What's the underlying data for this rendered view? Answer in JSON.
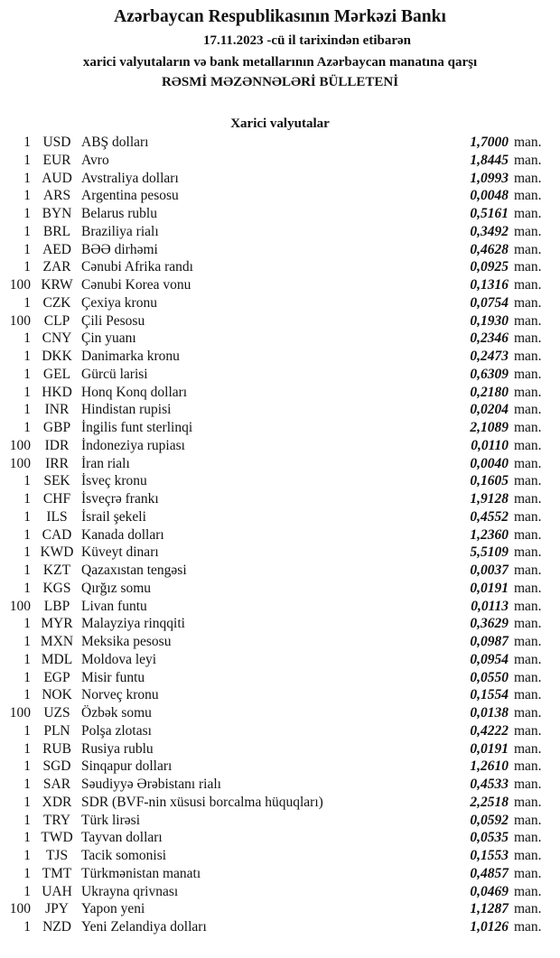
{
  "header": {
    "title": "Azərbaycan Respublikasının Mərkəzi Bankı",
    "date_line": "17.11.2023 -cü il tarixindən etibarən",
    "subtitle": "xarici valyutaların və bank metallarının Azərbaycan manatına qarşı",
    "bulletin": "RƏSMİ MƏZƏNNƏLƏRİ BÜLLETENİ"
  },
  "section_title": "Xarici valyutalar",
  "unit": "man.",
  "rates": [
    {
      "nominal": "1",
      "code": "USD",
      "name": "ABŞ dolları",
      "rate": "1,7000"
    },
    {
      "nominal": "1",
      "code": "EUR",
      "name": "Avro",
      "rate": "1,8445"
    },
    {
      "nominal": "1",
      "code": "AUD",
      "name": "Avstraliya dolları",
      "rate": "1,0993"
    },
    {
      "nominal": "1",
      "code": "ARS",
      "name": "Argentina pesosu",
      "rate": "0,0048"
    },
    {
      "nominal": "1",
      "code": "BYN",
      "name": "Belarus rublu",
      "rate": "0,5161"
    },
    {
      "nominal": "1",
      "code": "BRL",
      "name": "Braziliya rialı",
      "rate": "0,3492"
    },
    {
      "nominal": "1",
      "code": "AED",
      "name": "BƏƏ dirhəmi",
      "rate": "0,4628"
    },
    {
      "nominal": "1",
      "code": "ZAR",
      "name": "Cənubi Afrika randı",
      "rate": "0,0925"
    },
    {
      "nominal": "100",
      "code": "KRW",
      "name": "Cənubi Korea vonu",
      "rate": "0,1316"
    },
    {
      "nominal": "1",
      "code": "CZK",
      "name": "Çexiya kronu",
      "rate": "0,0754"
    },
    {
      "nominal": "100",
      "code": "CLP",
      "name": "Çili Pesosu",
      "rate": "0,1930"
    },
    {
      "nominal": "1",
      "code": "CNY",
      "name": "Çin yuanı",
      "rate": "0,2346"
    },
    {
      "nominal": "1",
      "code": "DKK",
      "name": "Danimarka kronu",
      "rate": "0,2473"
    },
    {
      "nominal": "1",
      "code": "GEL",
      "name": "Gürcü larisi",
      "rate": "0,6309"
    },
    {
      "nominal": "1",
      "code": "HKD",
      "name": "Honq Konq dolları",
      "rate": "0,2180"
    },
    {
      "nominal": "1",
      "code": "INR",
      "name": "Hindistan rupisi",
      "rate": "0,0204"
    },
    {
      "nominal": "1",
      "code": "GBP",
      "name": "İngilis funt sterlinqi",
      "rate": "2,1089"
    },
    {
      "nominal": "100",
      "code": "IDR",
      "name": "İndoneziya rupiası",
      "rate": "0,0110"
    },
    {
      "nominal": "100",
      "code": "IRR",
      "name": "İran rialı",
      "rate": "0,0040"
    },
    {
      "nominal": "1",
      "code": "SEK",
      "name": "İsveç kronu",
      "rate": "0,1605"
    },
    {
      "nominal": "1",
      "code": "CHF",
      "name": "İsveçrə frankı",
      "rate": "1,9128"
    },
    {
      "nominal": "1",
      "code": "ILS",
      "name": "İsrail şekeli",
      "rate": "0,4552"
    },
    {
      "nominal": "1",
      "code": "CAD",
      "name": "Kanada dolları",
      "rate": "1,2360"
    },
    {
      "nominal": "1",
      "code": "KWD",
      "name": "Küveyt dinarı",
      "rate": "5,5109"
    },
    {
      "nominal": "1",
      "code": "KZT",
      "name": "Qazaxıstan tengəsi",
      "rate": "0,0037"
    },
    {
      "nominal": "1",
      "code": "KGS",
      "name": "Qırğız somu",
      "rate": "0,0191"
    },
    {
      "nominal": "100",
      "code": "LBP",
      "name": "Livan funtu",
      "rate": "0,0113"
    },
    {
      "nominal": "1",
      "code": "MYR",
      "name": "Malayziya rinqqiti",
      "rate": "0,3629"
    },
    {
      "nominal": "1",
      "code": "MXN",
      "name": "Meksika pesosu",
      "rate": "0,0987"
    },
    {
      "nominal": "1",
      "code": "MDL",
      "name": "Moldova leyi",
      "rate": "0,0954"
    },
    {
      "nominal": "1",
      "code": "EGP",
      "name": "Misir funtu",
      "rate": "0,0550"
    },
    {
      "nominal": "1",
      "code": "NOK",
      "name": "Norveç kronu",
      "rate": "0,1554"
    },
    {
      "nominal": "100",
      "code": "UZS",
      "name": "Özbək somu",
      "rate": "0,0138"
    },
    {
      "nominal": "1",
      "code": "PLN",
      "name": "Polşa zlotası",
      "rate": "0,4222"
    },
    {
      "nominal": "1",
      "code": "RUB",
      "name": "Rusiya rublu",
      "rate": "0,0191"
    },
    {
      "nominal": "1",
      "code": "SGD",
      "name": "Sinqapur dolları",
      "rate": "1,2610"
    },
    {
      "nominal": "1",
      "code": "SAR",
      "name": "Səudiyyə Ərəbistanı rialı",
      "rate": "0,4533"
    },
    {
      "nominal": "1",
      "code": "XDR",
      "name": "SDR (BVF-nin xüsusi borcalma hüquqları)",
      "rate": "2,2518"
    },
    {
      "nominal": "1",
      "code": "TRY",
      "name": "Türk lirəsi",
      "rate": "0,0592"
    },
    {
      "nominal": "1",
      "code": "TWD",
      "name": "Tayvan dolları",
      "rate": "0,0535"
    },
    {
      "nominal": "1",
      "code": "TJS",
      "name": "Tacik somonisi",
      "rate": "0,1553"
    },
    {
      "nominal": "1",
      "code": "TMT",
      "name": "Türkmənistan manatı",
      "rate": "0,4857"
    },
    {
      "nominal": "1",
      "code": "UAH",
      "name": "Ukrayna qrivnası",
      "rate": "0,0469"
    },
    {
      "nominal": "100",
      "code": "JPY",
      "name": "Yapon yeni",
      "rate": "1,1287"
    },
    {
      "nominal": "1",
      "code": "NZD",
      "name": "Yeni Zelandiya dolları",
      "rate": "1,0126"
    }
  ]
}
